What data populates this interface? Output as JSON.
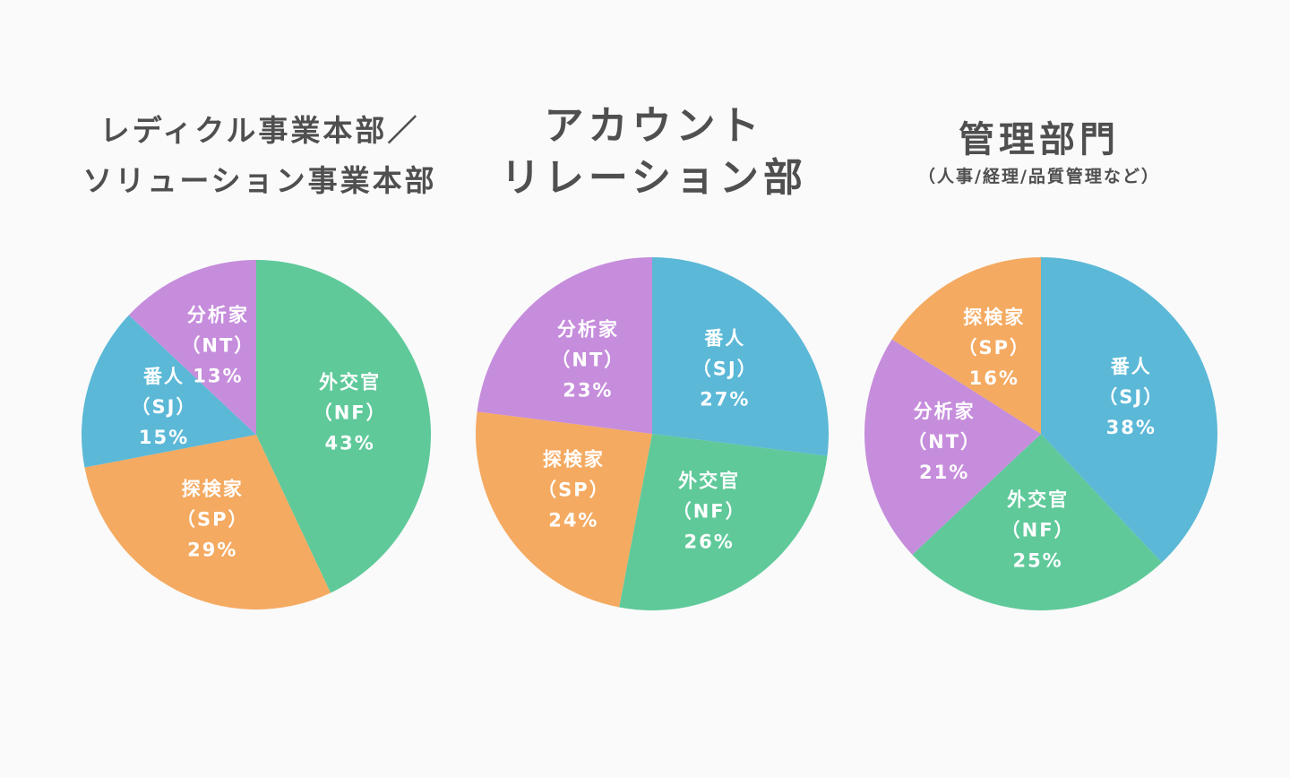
{
  "colors": {
    "nf": "#5fc99a",
    "sp": "#f4aa61",
    "sj": "#5bb8d7",
    "nt": "#c68ddc",
    "title": "#4f4f4f",
    "background": "#fafafa"
  },
  "chart_data": [
    {
      "type": "pie",
      "title_lines": [
        "レディクル事業本部／",
        "ソリューション事業本部"
      ],
      "slices": [
        {
          "key": "nf",
          "name": "外交官",
          "code": "（NF）",
          "value": 43,
          "label": "43%"
        },
        {
          "key": "sp",
          "name": "探検家",
          "code": "（SP）",
          "value": 29,
          "label": "29%"
        },
        {
          "key": "sj",
          "name": "番人",
          "code": "（SJ）",
          "value": 15,
          "label": "15%"
        },
        {
          "key": "nt",
          "name": "分析家",
          "code": "（NT）",
          "value": 13,
          "label": "13%"
        }
      ]
    },
    {
      "type": "pie",
      "title_lines": [
        "アカウント",
        "リレーション部"
      ],
      "slices": [
        {
          "key": "sj",
          "name": "番人",
          "code": "（SJ）",
          "value": 27,
          "label": "27%"
        },
        {
          "key": "nf",
          "name": "外交官",
          "code": "（NF）",
          "value": 26,
          "label": "26%"
        },
        {
          "key": "sp",
          "name": "探検家",
          "code": "（SP）",
          "value": 24,
          "label": "24%"
        },
        {
          "key": "nt",
          "name": "分析家",
          "code": "（NT）",
          "value": 23,
          "label": "23%"
        }
      ]
    },
    {
      "type": "pie",
      "title_lines": [
        "管理部門"
      ],
      "subtitle": "（人事/経理/品質管理など）",
      "slices": [
        {
          "key": "sj",
          "name": "番人",
          "code": "（SJ）",
          "value": 38,
          "label": "38%"
        },
        {
          "key": "nf",
          "name": "外交官",
          "code": "（NF）",
          "value": 25,
          "label": "25%"
        },
        {
          "key": "nt",
          "name": "分析家",
          "code": "（NT）",
          "value": 21,
          "label": "21%"
        },
        {
          "key": "sp",
          "name": "探検家",
          "code": "（SP）",
          "value": 16,
          "label": "16%"
        }
      ]
    }
  ]
}
